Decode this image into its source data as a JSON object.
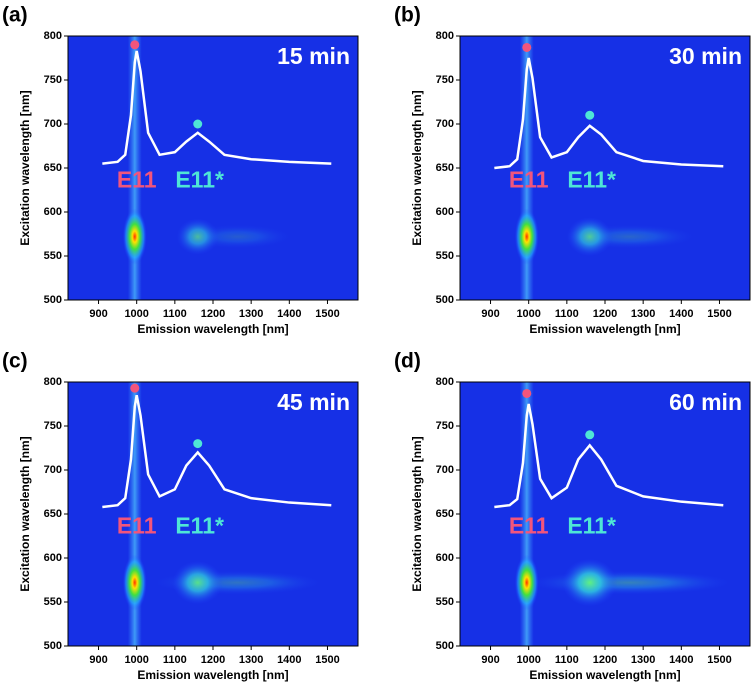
{
  "chart_data": [
    {
      "type": "heatmap",
      "panel_label": "(a)",
      "annotation": "15 min",
      "x_label": "Emission wavelength [nm]",
      "y_label": "Excitation wavelength [nm]",
      "xlim": [
        820,
        1580
      ],
      "ylim": [
        500,
        800
      ],
      "xticks": [
        900,
        1000,
        1100,
        1200,
        1300,
        1400,
        1500
      ],
      "yticks": [
        500,
        550,
        600,
        650,
        700,
        750,
        800
      ],
      "background": "#1630e6",
      "spots": [
        {
          "x": 995,
          "y": 572,
          "intensity": 1.0
        },
        {
          "x": 1160,
          "y": 572,
          "intensity": 0.45
        }
      ],
      "series": [
        {
          "color": "#ffffff",
          "x": [
            910,
            950,
            970,
            985,
            995,
            1000,
            1010,
            1030,
            1060,
            1100,
            1130,
            1160,
            1190,
            1230,
            1300,
            1400,
            1510
          ],
          "values": [
            655,
            657,
            665,
            710,
            770,
            783,
            760,
            690,
            665,
            668,
            680,
            690,
            680,
            665,
            660,
            657,
            655
          ]
        }
      ],
      "markers": [
        {
          "x": 995,
          "y": 790,
          "color": "#f2557c"
        },
        {
          "x": 1160,
          "y": 700,
          "color": "#4ee6d6"
        }
      ],
      "peak_labels": [
        {
          "text": "E11",
          "x": 1000,
          "y": 635,
          "color": "#f2557c"
        },
        {
          "text": "E11*",
          "x": 1165,
          "y": 635,
          "color": "#4ee6d6"
        }
      ]
    },
    {
      "type": "heatmap",
      "panel_label": "(b)",
      "annotation": "30 min",
      "x_label": "Emission wavelength [nm]",
      "y_label": "Excitation wavelength [nm]",
      "xlim": [
        820,
        1580
      ],
      "ylim": [
        500,
        800
      ],
      "xticks": [
        900,
        1000,
        1100,
        1200,
        1300,
        1400,
        1500
      ],
      "yticks": [
        500,
        550,
        600,
        650,
        700,
        750,
        800
      ],
      "background": "#1630e6",
      "spots": [
        {
          "x": 995,
          "y": 572,
          "intensity": 1.0
        },
        {
          "x": 1160,
          "y": 572,
          "intensity": 0.55
        }
      ],
      "series": [
        {
          "color": "#ffffff",
          "x": [
            910,
            950,
            970,
            985,
            995,
            1000,
            1010,
            1030,
            1060,
            1100,
            1130,
            1160,
            1190,
            1230,
            1300,
            1400,
            1510
          ],
          "values": [
            650,
            652,
            660,
            705,
            762,
            775,
            752,
            685,
            662,
            668,
            685,
            698,
            688,
            668,
            658,
            654,
            652
          ]
        }
      ],
      "markers": [
        {
          "x": 995,
          "y": 787,
          "color": "#f2557c"
        },
        {
          "x": 1160,
          "y": 710,
          "color": "#4ee6d6"
        }
      ],
      "peak_labels": [
        {
          "text": "E11",
          "x": 1000,
          "y": 635,
          "color": "#f2557c"
        },
        {
          "text": "E11*",
          "x": 1165,
          "y": 635,
          "color": "#4ee6d6"
        }
      ]
    },
    {
      "type": "heatmap",
      "panel_label": "(c)",
      "annotation": "45 min",
      "x_label": "Emission wavelength [nm]",
      "y_label": "Excitation wavelength [nm]",
      "xlim": [
        820,
        1580
      ],
      "ylim": [
        500,
        800
      ],
      "xticks": [
        900,
        1000,
        1100,
        1200,
        1300,
        1400,
        1500
      ],
      "yticks": [
        500,
        550,
        600,
        650,
        700,
        750,
        800
      ],
      "background": "#1630e6",
      "spots": [
        {
          "x": 995,
          "y": 572,
          "intensity": 1.0
        },
        {
          "x": 1160,
          "y": 572,
          "intensity": 0.7
        }
      ],
      "series": [
        {
          "color": "#ffffff",
          "x": [
            910,
            950,
            970,
            985,
            995,
            1000,
            1010,
            1030,
            1060,
            1100,
            1130,
            1160,
            1190,
            1230,
            1300,
            1400,
            1510
          ],
          "values": [
            658,
            660,
            668,
            712,
            772,
            785,
            762,
            695,
            670,
            678,
            705,
            720,
            705,
            678,
            668,
            663,
            660
          ]
        }
      ],
      "markers": [
        {
          "x": 995,
          "y": 793,
          "color": "#f2557c"
        },
        {
          "x": 1160,
          "y": 730,
          "color": "#4ee6d6"
        }
      ],
      "peak_labels": [
        {
          "text": "E11",
          "x": 1000,
          "y": 635,
          "color": "#f2557c"
        },
        {
          "text": "E11*",
          "x": 1165,
          "y": 635,
          "color": "#4ee6d6"
        }
      ]
    },
    {
      "type": "heatmap",
      "panel_label": "(d)",
      "annotation": "60 min",
      "x_label": "Emission wavelength [nm]",
      "y_label": "Excitation wavelength [nm]",
      "xlim": [
        820,
        1580
      ],
      "ylim": [
        500,
        800
      ],
      "xticks": [
        900,
        1000,
        1100,
        1200,
        1300,
        1400,
        1500
      ],
      "yticks": [
        500,
        550,
        600,
        650,
        700,
        750,
        800
      ],
      "background": "#1630e6",
      "spots": [
        {
          "x": 995,
          "y": 572,
          "intensity": 1.0
        },
        {
          "x": 1160,
          "y": 572,
          "intensity": 0.85
        }
      ],
      "series": [
        {
          "color": "#ffffff",
          "x": [
            910,
            950,
            970,
            985,
            995,
            1000,
            1010,
            1030,
            1060,
            1100,
            1130,
            1160,
            1190,
            1230,
            1300,
            1400,
            1510
          ],
          "values": [
            658,
            660,
            667,
            708,
            762,
            775,
            752,
            690,
            668,
            680,
            712,
            728,
            712,
            682,
            670,
            664,
            660
          ]
        }
      ],
      "markers": [
        {
          "x": 995,
          "y": 787,
          "color": "#f2557c"
        },
        {
          "x": 1160,
          "y": 740,
          "color": "#4ee6d6"
        }
      ],
      "peak_labels": [
        {
          "text": "E11",
          "x": 1000,
          "y": 635,
          "color": "#f2557c"
        },
        {
          "text": "E11*",
          "x": 1165,
          "y": 635,
          "color": "#4ee6d6"
        }
      ]
    }
  ]
}
